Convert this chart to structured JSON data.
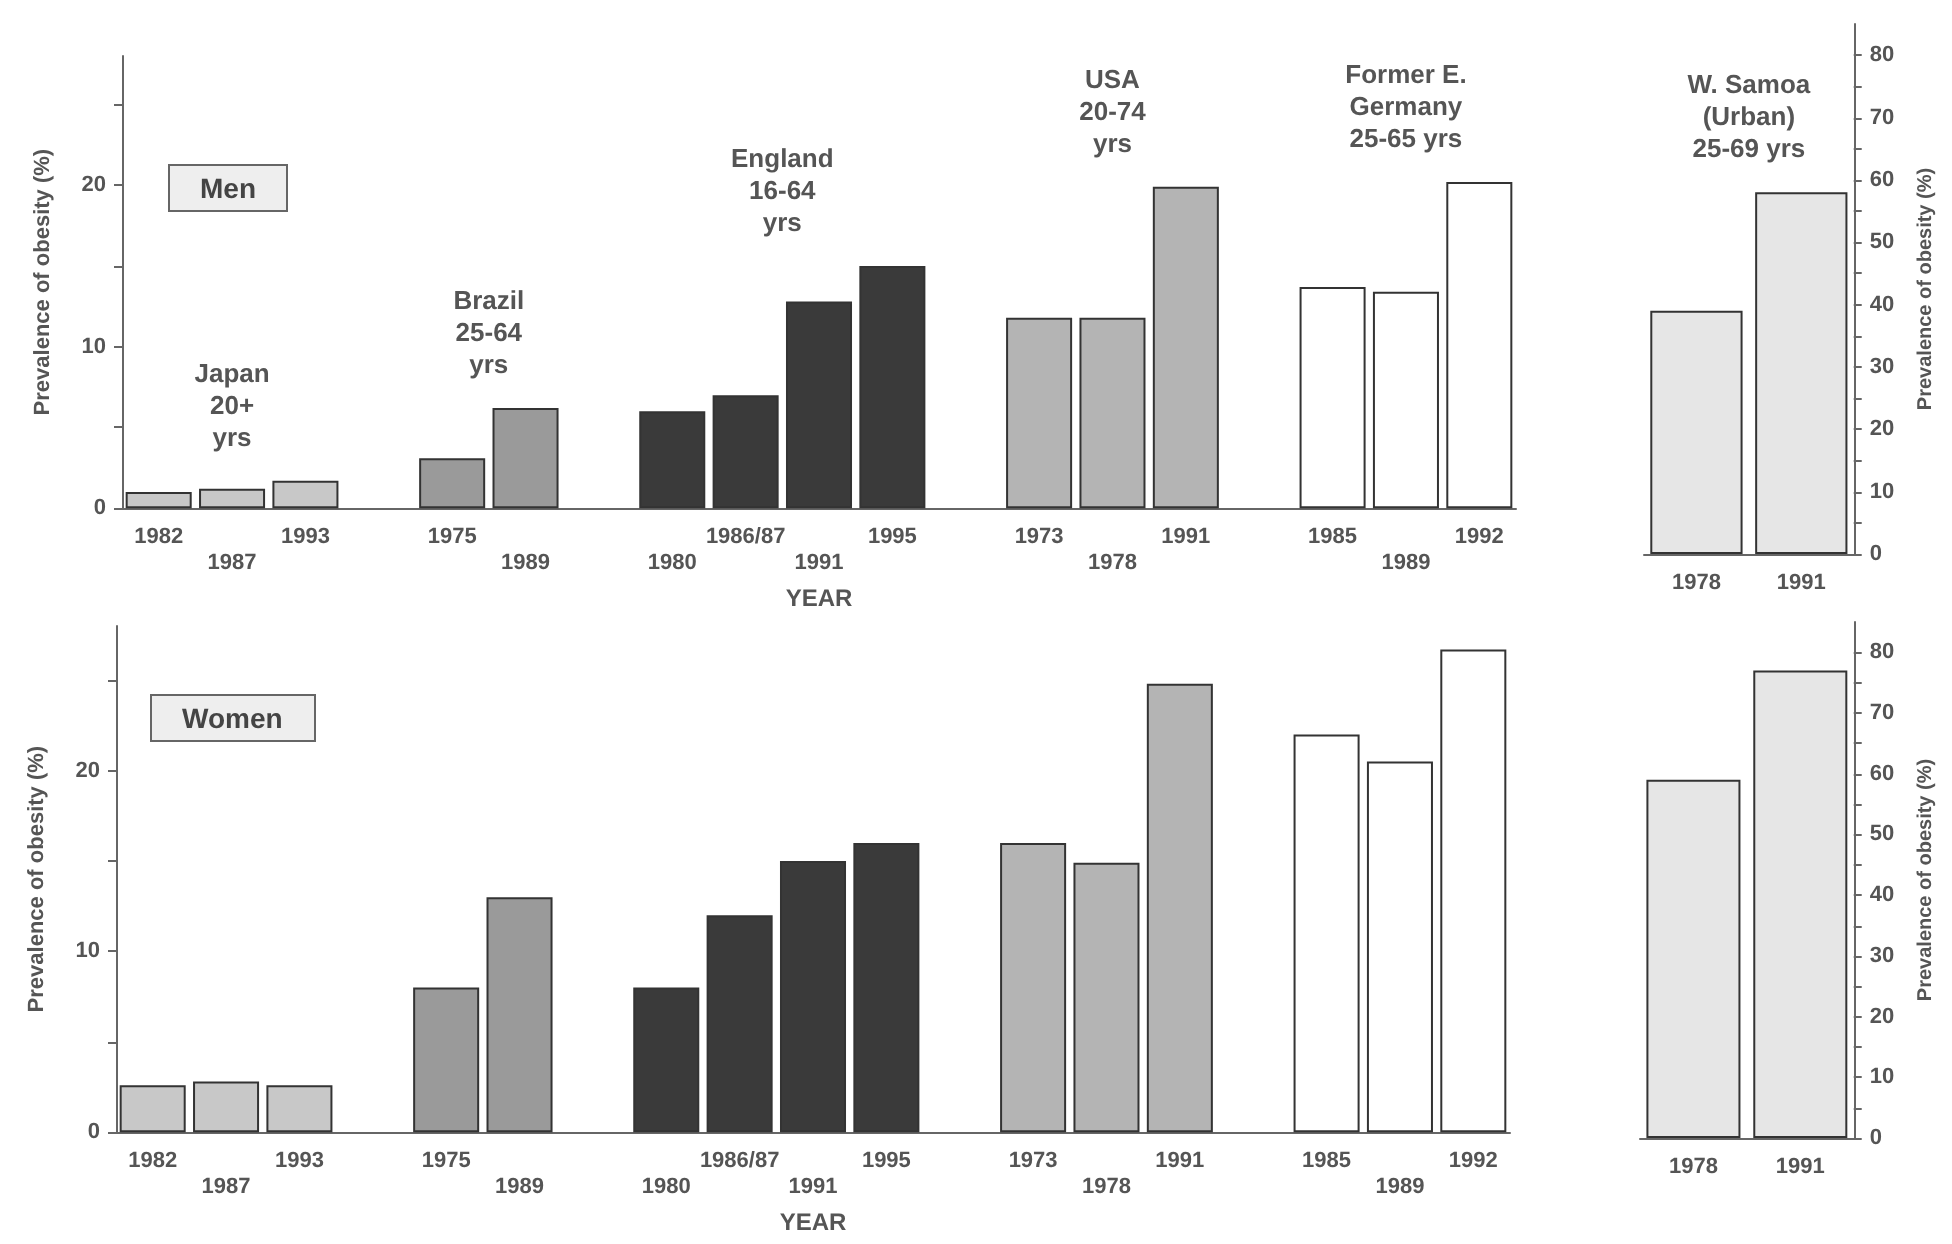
{
  "chart_data": [
    {
      "type": "bar",
      "title": "Men",
      "xlabel": "YEAR",
      "ylabel": "Prevalence of obesity (%)",
      "categories": [
        "1982",
        "1987",
        "1993",
        null,
        "1975",
        "1989",
        null,
        "1980",
        "1986/87",
        "1991",
        "1995",
        null,
        "1973",
        "1978",
        "1991",
        null,
        "1985",
        "1989",
        "1992"
      ],
      "values": [
        1.0,
        1.2,
        1.7,
        null,
        3.1,
        6.2,
        null,
        6.0,
        7.0,
        12.8,
        15.0,
        null,
        11.8,
        11.8,
        19.9,
        null,
        13.7,
        13.4,
        20.2
      ],
      "colors": [
        "#c8c8c8",
        "#c8c8c8",
        "#c8c8c8",
        null,
        "#9a9a9a",
        "#9a9a9a",
        null,
        "#3a3a3a",
        "#3a3a3a",
        "#3a3a3a",
        "#3a3a3a",
        null,
        "#b4b4b4",
        "#b4b4b4",
        "#b4b4b4",
        null,
        "#ffffff",
        "#ffffff",
        "#ffffff"
      ],
      "ylim": [
        0,
        28
      ],
      "yticks": [
        0,
        {
          "value": 5,
          "label": null
        },
        10,
        {
          "value": 15,
          "label": null
        },
        20,
        {
          "value": 25,
          "label": null
        }
      ],
      "annotations": [
        "Japan\n20+\nyrs",
        "Brazil\n25-64\nyrs",
        "England\n16-64\nyrs",
        "USA\n20-74\nyrs",
        "Former E.\nGermany\n25-65 yrs"
      ]
    },
    {
      "type": "bar",
      "y2label": "Prevalence of obesity (%)",
      "categories": [
        "1978",
        "1991"
      ],
      "series": [
        {
          "axis": "y2",
          "color": "#e6e6e6",
          "values": [
            39,
            58
          ]
        }
      ],
      "y2lim": [
        0,
        85
      ],
      "y2ticks": [
        0,
        {
          "value": 5,
          "label": null
        },
        10,
        {
          "value": 15,
          "label": null
        },
        20,
        {
          "value": 25,
          "label": null
        },
        30,
        {
          "value": 35,
          "label": null
        },
        40,
        {
          "value": 45,
          "label": null
        },
        50,
        {
          "value": 55,
          "label": null
        },
        60,
        {
          "value": 65,
          "label": null
        },
        70,
        {
          "value": 75,
          "label": null
        },
        80
      ],
      "annotations": [
        "W. Samoa\n(Urban)\n25-69 yrs"
      ]
    },
    {
      "type": "bar",
      "title": "Women",
      "xlabel": "YEAR",
      "ylabel": "Prevalence of obesity (%)",
      "categories": [
        "1982",
        "1987",
        "1993",
        null,
        "1975",
        "1989",
        null,
        "1980",
        "1986/87",
        "1991",
        "1995",
        null,
        "1973",
        "1978",
        "1991",
        null,
        "1985",
        "1989",
        "1992"
      ],
      "values": [
        2.6,
        2.8,
        2.6,
        null,
        8.0,
        13.0,
        null,
        8.0,
        12.0,
        15.0,
        16.0,
        null,
        16.0,
        14.9,
        24.8,
        null,
        22.0,
        20.5,
        26.7
      ],
      "colors": [
        "#c8c8c8",
        "#c8c8c8",
        "#c8c8c8",
        null,
        "#9a9a9a",
        "#9a9a9a",
        null,
        "#3a3a3a",
        "#3a3a3a",
        "#3a3a3a",
        "#3a3a3a",
        null,
        "#b4b4b4",
        "#b4b4b4",
        "#b4b4b4",
        null,
        "#ffffff",
        "#ffffff",
        "#ffffff"
      ],
      "ylim": [
        0,
        28
      ],
      "yticks": [
        0,
        {
          "value": 5,
          "label": null
        },
        10,
        {
          "value": 15,
          "label": null
        },
        20,
        {
          "value": 25,
          "label": null
        }
      ]
    },
    {
      "type": "bar",
      "y2label": "Prevalence of obesity (%)",
      "categories": [
        "1978",
        "1991"
      ],
      "series": [
        {
          "axis": "y2",
          "color": "#e6e6e6",
          "values": [
            59,
            77
          ]
        }
      ],
      "y2lim": [
        0,
        85
      ],
      "y2ticks": [
        0,
        {
          "value": 5,
          "label": null
        },
        10,
        {
          "value": 15,
          "label": null
        },
        20,
        {
          "value": 25,
          "label": null
        },
        30,
        {
          "value": 35,
          "label": null
        },
        40,
        {
          "value": 45,
          "label": null
        },
        50,
        {
          "value": 55,
          "label": null
        },
        60,
        {
          "value": 65,
          "label": null
        },
        70,
        {
          "value": 75,
          "label": null
        },
        80
      ]
    }
  ]
}
